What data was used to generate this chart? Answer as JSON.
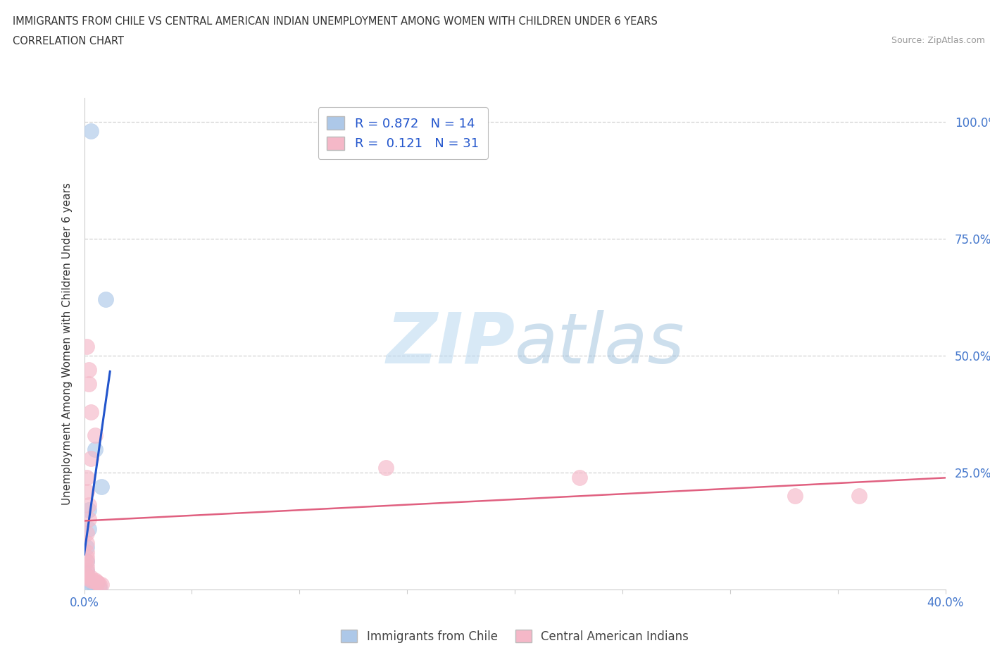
{
  "title_line1": "IMMIGRANTS FROM CHILE VS CENTRAL AMERICAN INDIAN UNEMPLOYMENT AMONG WOMEN WITH CHILDREN UNDER 6 YEARS",
  "title_line2": "CORRELATION CHART",
  "source": "Source: ZipAtlas.com",
  "ylabel": "Unemployment Among Women with Children Under 6 years",
  "xlim": [
    0.0,
    0.4
  ],
  "ylim": [
    0.0,
    1.05
  ],
  "blue_R": 0.872,
  "blue_N": 14,
  "pink_R": 0.121,
  "pink_N": 31,
  "blue_color": "#adc8e8",
  "pink_color": "#f5b8c8",
  "blue_line_color": "#2255cc",
  "pink_line_color": "#e06080",
  "blue_scatter": [
    [
      0.003,
      0.98
    ],
    [
      0.01,
      0.62
    ],
    [
      0.005,
      0.3
    ],
    [
      0.008,
      0.22
    ],
    [
      0.002,
      0.17
    ],
    [
      0.002,
      0.13
    ],
    [
      0.001,
      0.09
    ],
    [
      0.001,
      0.06
    ],
    [
      0.001,
      0.04
    ],
    [
      0.001,
      0.03
    ],
    [
      0.001,
      0.02
    ],
    [
      0.003,
      0.01
    ],
    [
      0.005,
      0.005
    ],
    [
      0.007,
      0.005
    ]
  ],
  "pink_scatter": [
    [
      0.001,
      0.52
    ],
    [
      0.002,
      0.47
    ],
    [
      0.002,
      0.44
    ],
    [
      0.003,
      0.38
    ],
    [
      0.005,
      0.33
    ],
    [
      0.003,
      0.28
    ],
    [
      0.001,
      0.24
    ],
    [
      0.001,
      0.21
    ],
    [
      0.002,
      0.18
    ],
    [
      0.002,
      0.15
    ],
    [
      0.001,
      0.12
    ],
    [
      0.001,
      0.1
    ],
    [
      0.001,
      0.08
    ],
    [
      0.001,
      0.07
    ],
    [
      0.001,
      0.06
    ],
    [
      0.001,
      0.05
    ],
    [
      0.001,
      0.04
    ],
    [
      0.001,
      0.03
    ],
    [
      0.001,
      0.025
    ],
    [
      0.003,
      0.025
    ],
    [
      0.003,
      0.02
    ],
    [
      0.004,
      0.02
    ],
    [
      0.005,
      0.02
    ],
    [
      0.006,
      0.015
    ],
    [
      0.006,
      0.015
    ],
    [
      0.007,
      0.01
    ],
    [
      0.008,
      0.01
    ],
    [
      0.14,
      0.26
    ],
    [
      0.23,
      0.24
    ],
    [
      0.33,
      0.2
    ],
    [
      0.36,
      0.2
    ]
  ],
  "watermark_zip": "ZIP",
  "watermark_atlas": "atlas",
  "background_color": "#ffffff",
  "grid_color": "#d0d0d0",
  "tick_color": "#4477cc",
  "axis_color": "#cccccc",
  "title_color": "#333333",
  "source_color": "#999999",
  "legend_label_color": "#2255cc"
}
